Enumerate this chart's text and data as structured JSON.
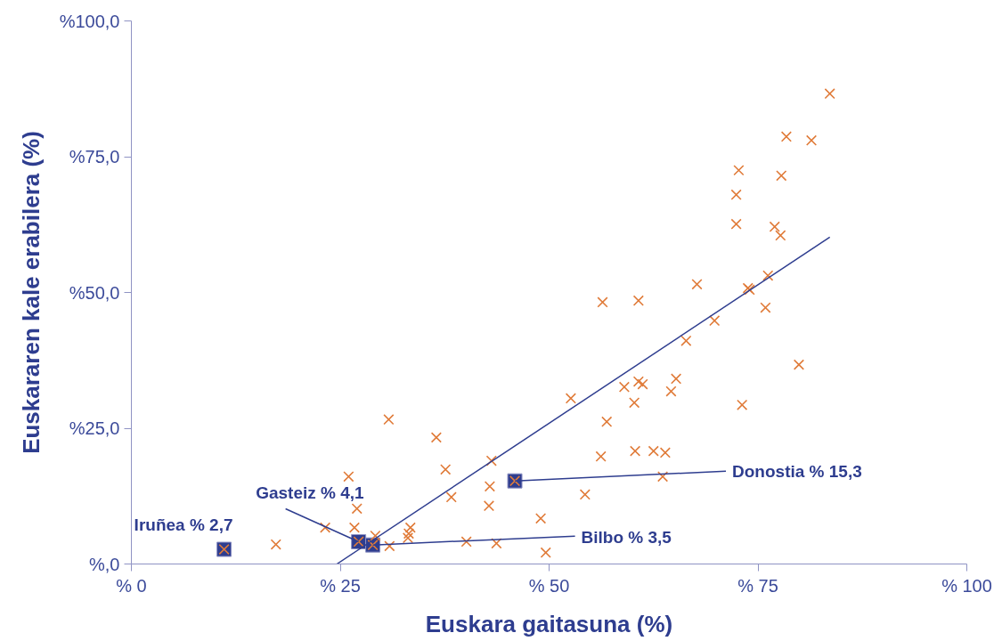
{
  "chart_data": {
    "type": "scatter",
    "xlabel": "Euskara gaitasuna (%)",
    "ylabel": "Euskararen kale erabilera (%)",
    "xlim": [
      0,
      100
    ],
    "ylim": [
      0,
      100
    ],
    "xticks": [
      {
        "value": 0,
        "label": "% 0"
      },
      {
        "value": 25,
        "label": "% 25"
      },
      {
        "value": 50,
        "label": "% 50"
      },
      {
        "value": 75,
        "label": "% 75"
      },
      {
        "value": 100,
        "label": "% 100"
      }
    ],
    "yticks": [
      {
        "value": 0,
        "label": "%,0"
      },
      {
        "value": 25,
        "label": "%25,0"
      },
      {
        "value": 50,
        "label": "%50,0"
      },
      {
        "value": 75,
        "label": "%75,0"
      },
      {
        "value": 100,
        "label": "%100,0"
      }
    ],
    "grid": false,
    "series": [
      {
        "marker": "square",
        "color": "#2e3d8f",
        "x": [
          11.1,
          27.2,
          28.9,
          45.9
        ],
        "values": [
          2.7,
          4.1,
          3.5,
          15.3
        ]
      },
      {
        "marker": "cross",
        "color": "#e07b39",
        "x": [
          83.6,
          78.4,
          81.4,
          72.7,
          77.8,
          72.4,
          72.4,
          77.0,
          77.7,
          76.2,
          73.8,
          74.0,
          67.7,
          56.4,
          60.7,
          75.9,
          69.8,
          66.4,
          79.9,
          65.2,
          60.7,
          61.2,
          59.0,
          64.6,
          52.6,
          60.2,
          73.1,
          56.9,
          30.8,
          36.5,
          56.2,
          60.3,
          62.5,
          63.9,
          37.6,
          43.1,
          42.9,
          26.0,
          63.6,
          54.3,
          38.3,
          42.8,
          27.0,
          49.0,
          23.2,
          26.7,
          33.4,
          33.1,
          33.2,
          29.2,
          17.3,
          30.9,
          40.1,
          43.7,
          49.6,
          11.1,
          27.2,
          28.9,
          45.9
        ],
        "values": [
          86.6,
          78.7,
          78.0,
          72.5,
          71.5,
          68.0,
          62.6,
          62.1,
          60.5,
          53.1,
          50.8,
          50.5,
          51.5,
          48.2,
          48.5,
          47.2,
          44.8,
          41.1,
          36.7,
          34.1,
          33.6,
          33.1,
          32.6,
          31.8,
          30.5,
          29.7,
          29.3,
          26.2,
          26.6,
          23.3,
          19.8,
          20.8,
          20.8,
          20.5,
          17.4,
          19.0,
          14.3,
          16.1,
          16.1,
          12.8,
          12.3,
          10.7,
          10.2,
          8.4,
          6.7,
          6.7,
          6.7,
          4.8,
          5.6,
          5.2,
          3.6,
          3.3,
          4.1,
          3.8,
          2.1,
          2.7,
          4.1,
          3.5,
          15.3
        ]
      },
      {
        "type": "line",
        "color": "#2e3d8f",
        "x": [
          24.6,
          83.6
        ],
        "values": [
          0,
          60.2
        ]
      }
    ],
    "annotations": [
      {
        "text": "Iruñea % 2,7",
        "x": 11.1,
        "y": 2.7
      },
      {
        "text": "Gasteiz % 4,1",
        "x": 27.2,
        "y": 4.1
      },
      {
        "text": "Bilbo % 3,5",
        "x": 28.9,
        "y": 3.5
      },
      {
        "text": "Donostia % 15,3",
        "x": 45.9,
        "y": 15.3
      }
    ]
  }
}
